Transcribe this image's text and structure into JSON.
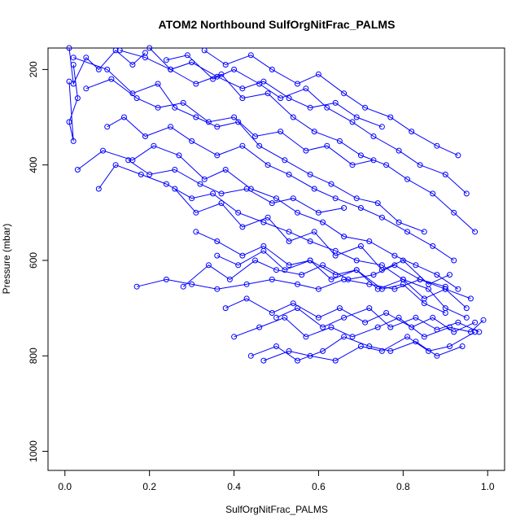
{
  "chart_data": {
    "type": "line",
    "title": "ATOM2 Northbound SulfOrgNitFrac_PALMS",
    "xlabel": "SulfOrgNitFrac_PALMS",
    "ylabel": "Pressure (mbar)",
    "xlim": [
      -0.04,
      1.04
    ],
    "ylim": [
      1040,
      155
    ],
    "y_reversed": true,
    "x_ticks": [
      0.0,
      0.2,
      0.4,
      0.6,
      0.8,
      1.0
    ],
    "x_tick_labels": [
      "0.0",
      "0.2",
      "0.4",
      "0.6",
      "0.8",
      "1.0"
    ],
    "y_ticks": [
      200,
      400,
      600,
      800,
      1000
    ],
    "y_tick_labels": [
      "200",
      "400",
      "600",
      "800",
      "1000"
    ],
    "grid": false,
    "legend": "none",
    "markers": "open-circle",
    "color": "#0000ff",
    "series": [
      {
        "x": [
          0.01,
          0.02,
          0.05,
          0.08,
          0.12,
          0.16,
          0.19
        ],
        "y": [
          155,
          230,
          175,
          200,
          160,
          190,
          165
        ]
      },
      {
        "x": [
          0.02,
          0.03,
          0.01,
          0.02,
          0.01
        ],
        "y": [
          190,
          260,
          310,
          350,
          225
        ]
      },
      {
        "x": [
          0.02,
          0.1,
          0.16,
          0.22,
          0.26,
          0.31,
          0.36,
          0.41,
          0.46,
          0.52,
          0.58,
          0.63,
          0.69,
          0.74,
          0.79,
          0.85
        ],
        "y": [
          175,
          200,
          250,
          230,
          280,
          300,
          320,
          310,
          360,
          390,
          420,
          440,
          470,
          480,
          520,
          540
        ]
      },
      {
        "x": [
          0.03,
          0.09,
          0.16,
          0.21,
          0.27,
          0.33,
          0.38,
          0.44,
          0.5,
          0.55,
          0.61,
          0.66,
          0.72,
          0.78,
          0.83,
          0.88,
          0.93
        ],
        "y": [
          410,
          370,
          390,
          360,
          380,
          430,
          410,
          450,
          470,
          500,
          520,
          550,
          560,
          590,
          610,
          630,
          660
        ]
      },
      {
        "x": [
          0.08,
          0.12,
          0.18,
          0.24,
          0.3,
          0.35,
          0.41,
          0.47,
          0.53,
          0.58,
          0.64,
          0.69,
          0.75,
          0.8,
          0.86,
          0.9,
          0.95
        ],
        "y": [
          450,
          400,
          420,
          440,
          470,
          460,
          500,
          520,
          540,
          560,
          580,
          600,
          610,
          640,
          660,
          700,
          720
        ]
      },
      {
        "x": [
          0.1,
          0.14,
          0.19,
          0.25,
          0.3,
          0.36,
          0.42,
          0.48,
          0.53,
          0.59,
          0.64,
          0.7,
          0.75,
          0.81,
          0.87,
          0.92
        ],
        "y": [
          320,
          300,
          340,
          320,
          350,
          380,
          360,
          400,
          420,
          450,
          470,
          490,
          510,
          540,
          570,
          600
        ]
      },
      {
        "x": [
          0.17,
          0.24,
          0.3,
          0.36,
          0.43,
          0.49,
          0.55,
          0.6,
          0.66,
          0.72,
          0.78,
          0.84,
          0.9
        ],
        "y": [
          655,
          640,
          650,
          660,
          650,
          640,
          650,
          660,
          640,
          650,
          660,
          640,
          655
        ]
      },
      {
        "x": [
          0.28,
          0.34,
          0.39,
          0.45,
          0.5,
          0.56,
          0.61,
          0.67,
          0.73,
          0.78,
          0.84,
          0.9,
          0.96
        ],
        "y": [
          655,
          610,
          640,
          600,
          620,
          630,
          610,
          640,
          630,
          610,
          640,
          660,
          680
        ]
      },
      {
        "x": [
          0.4,
          0.46,
          0.52,
          0.57,
          0.63,
          0.68,
          0.74,
          0.79,
          0.85,
          0.91,
          0.96,
          0.99
        ],
        "y": [
          760,
          740,
          720,
          760,
          740,
          760,
          740,
          720,
          760,
          740,
          750,
          725
        ]
      },
      {
        "x": [
          0.44,
          0.5,
          0.55,
          0.61,
          0.66,
          0.72,
          0.77,
          0.83,
          0.88,
          0.94
        ],
        "y": [
          800,
          780,
          810,
          790,
          760,
          780,
          790,
          770,
          800,
          780
        ]
      },
      {
        "x": [
          0.47,
          0.53,
          0.58,
          0.64,
          0.7,
          0.75,
          0.81,
          0.86,
          0.91,
          0.97
        ],
        "y": [
          810,
          790,
          800,
          810,
          780,
          790,
          760,
          790,
          780,
          750
        ]
      },
      {
        "x": [
          0.2,
          0.25,
          0.31,
          0.37,
          0.42,
          0.48,
          0.54,
          0.59,
          0.65,
          0.7,
          0.76,
          0.81,
          0.87,
          0.92,
          0.97
        ],
        "y": [
          155,
          200,
          230,
          210,
          260,
          250,
          300,
          330,
          350,
          380,
          400,
          430,
          460,
          500,
          540
        ]
      },
      {
        "x": [
          0.24,
          0.29,
          0.35,
          0.4,
          0.46,
          0.51,
          0.57,
          0.62,
          0.68,
          0.73,
          0.79,
          0.84,
          0.9,
          0.95
        ],
        "y": [
          180,
          170,
          220,
          200,
          230,
          260,
          240,
          280,
          310,
          340,
          370,
          400,
          420,
          460
        ]
      },
      {
        "x": [
          0.33,
          0.38,
          0.44,
          0.49,
          0.55,
          0.6,
          0.66,
          0.71,
          0.77,
          0.82,
          0.88,
          0.93
        ],
        "y": [
          160,
          190,
          170,
          200,
          230,
          210,
          250,
          280,
          300,
          330,
          360,
          380
        ]
      },
      {
        "x": [
          0.26,
          0.31,
          0.37,
          0.42,
          0.48,
          0.53,
          0.59,
          0.64,
          0.7,
          0.75,
          0.8,
          0.86,
          0.91
        ],
        "y": [
          450,
          500,
          480,
          530,
          510,
          560,
          540,
          590,
          570,
          620,
          600,
          650,
          630
        ]
      },
      {
        "x": [
          0.31,
          0.36,
          0.42,
          0.47,
          0.53,
          0.58,
          0.64,
          0.69,
          0.75,
          0.8,
          0.85,
          0.9
        ],
        "y": [
          540,
          560,
          590,
          570,
          610,
          600,
          630,
          620,
          660,
          650,
          690,
          710
        ]
      },
      {
        "x": [
          0.38,
          0.43,
          0.49,
          0.54,
          0.6,
          0.65,
          0.71,
          0.76,
          0.82,
          0.87,
          0.92,
          0.97
        ],
        "y": [
          700,
          680,
          710,
          690,
          720,
          700,
          730,
          710,
          740,
          720,
          750,
          730
        ]
      },
      {
        "x": [
          0.36,
          0.41,
          0.47,
          0.52,
          0.58,
          0.63,
          0.69,
          0.74,
          0.8,
          0.85,
          0.9,
          0.95
        ],
        "y": [
          590,
          610,
          580,
          620,
          600,
          640,
          620,
          660,
          640,
          680,
          660,
          700
        ]
      },
      {
        "x": [
          0.05,
          0.11,
          0.17,
          0.22,
          0.28,
          0.34,
          0.4,
          0.45,
          0.51,
          0.57,
          0.62,
          0.68,
          0.73
        ],
        "y": [
          240,
          220,
          260,
          280,
          270,
          310,
          300,
          340,
          330,
          370,
          360,
          400,
          390
        ]
      },
      {
        "x": [
          0.13,
          0.19,
          0.25,
          0.3,
          0.36,
          0.42,
          0.47,
          0.53,
          0.58,
          0.64,
          0.69,
          0.75
        ],
        "y": [
          160,
          175,
          200,
          185,
          215,
          240,
          225,
          260,
          280,
          270,
          300,
          320
        ]
      },
      {
        "x": [
          0.5,
          0.55,
          0.61,
          0.66,
          0.72,
          0.77,
          0.83,
          0.88,
          0.93,
          0.98
        ],
        "y": [
          720,
          700,
          740,
          720,
          700,
          740,
          720,
          745,
          730,
          750
        ]
      },
      {
        "x": [
          0.15,
          0.2,
          0.26,
          0.32,
          0.37,
          0.43,
          0.49,
          0.54,
          0.6,
          0.66
        ],
        "y": [
          390,
          420,
          410,
          440,
          460,
          450,
          480,
          470,
          500,
          490
        ]
      }
    ]
  }
}
